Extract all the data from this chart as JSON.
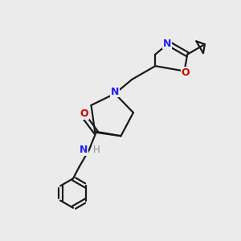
{
  "background_color": "#ebebeb",
  "bond_color": "#1a1a1a",
  "N_color": "#2020ff",
  "O_color": "#cc0000",
  "H_color": "#7a9a9a",
  "line_width": 1.6,
  "fig_width": 3.0,
  "fig_height": 3.0,
  "xlim": [
    0,
    10
  ],
  "ylim": [
    0,
    10
  ]
}
